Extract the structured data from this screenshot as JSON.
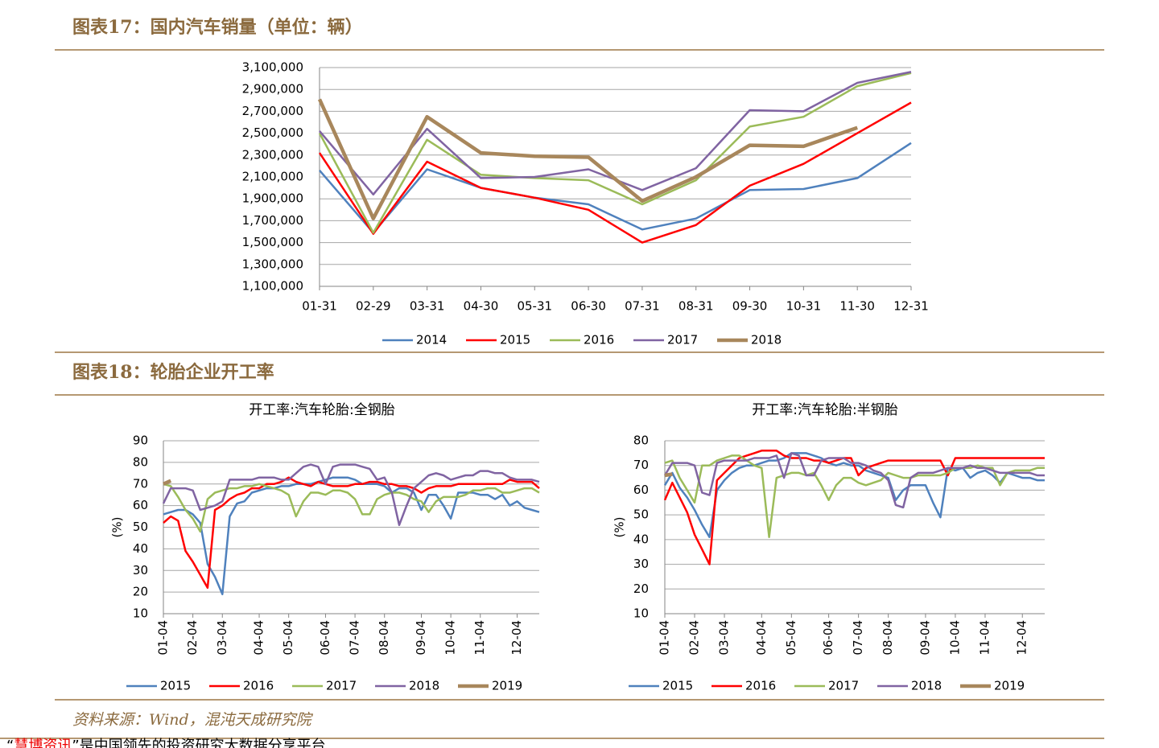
{
  "sections": [
    {
      "title": "图表17：国内汽车销量（单位：辆）"
    },
    {
      "title": "图表18：轮胎企业开工率"
    }
  ],
  "source": "资料来源：Wind，混沌天成研究院",
  "footer": {
    "quote_open": "“",
    "brand": "慧博资讯",
    "rest": "”是中国领先的投资研究大数据分享平台"
  },
  "chart_data": [
    {
      "type": "line",
      "categories": [
        "01-31",
        "02-29",
        "03-31",
        "04-30",
        "05-31",
        "06-30",
        "07-31",
        "08-31",
        "09-30",
        "10-31",
        "11-30",
        "12-31"
      ],
      "ylim": [
        1100000,
        3100000
      ],
      "yticks": [
        {
          "value": 1100000,
          "label": "1,100,000"
        },
        {
          "value": 1300000,
          "label": "1,300,000"
        },
        {
          "value": 1500000,
          "label": "1,500,000"
        },
        {
          "value": 1700000,
          "label": "1,700,000"
        },
        {
          "value": 1900000,
          "label": "1,900,000"
        },
        {
          "value": 2100000,
          "label": "2,100,000"
        },
        {
          "value": 2300000,
          "label": "2,300,000"
        },
        {
          "value": 2500000,
          "label": "2,500,000"
        },
        {
          "value": 2700000,
          "label": "2,700,000"
        },
        {
          "value": 2900000,
          "label": "2,900,000"
        },
        {
          "value": 3100000,
          "label": "3,100,000"
        }
      ],
      "grid": true,
      "series": [
        {
          "name": "2014",
          "color": "#4f81bd",
          "width": 2.5,
          "values": [
            2160000,
            1590000,
            2170000,
            2000000,
            1910000,
            1850000,
            1620000,
            1720000,
            1980000,
            1990000,
            2090000,
            2410000
          ]
        },
        {
          "name": "2015",
          "color": "#ff0000",
          "width": 2.5,
          "values": [
            2320000,
            1580000,
            2240000,
            2000000,
            1910000,
            1800000,
            1500000,
            1660000,
            2020000,
            2220000,
            2500000,
            2780000
          ]
        },
        {
          "name": "2016",
          "color": "#9bbb59",
          "width": 2.5,
          "values": [
            2500000,
            1590000,
            2440000,
            2120000,
            2090000,
            2070000,
            1850000,
            2070000,
            2560000,
            2650000,
            2930000,
            3050000
          ]
        },
        {
          "name": "2017",
          "color": "#8064a2",
          "width": 2.5,
          "values": [
            2520000,
            1940000,
            2540000,
            2090000,
            2100000,
            2170000,
            1980000,
            2180000,
            2710000,
            2700000,
            2960000,
            3060000
          ]
        },
        {
          "name": "2018",
          "color": "#a8875c",
          "width": 4.5,
          "values": [
            2810000,
            1720000,
            2650000,
            2320000,
            2290000,
            2280000,
            1880000,
            2100000,
            2390000,
            2380000,
            2550000,
            null
          ]
        }
      ]
    },
    {
      "type": "line",
      "title": "开工率:汽车轮胎:全钢胎",
      "ylabel": "(%)",
      "categories": [
        "01-04",
        null,
        null,
        null,
        "02-04",
        null,
        null,
        null,
        "03-04",
        null,
        null,
        null,
        null,
        "04-04",
        null,
        null,
        null,
        "05-04",
        null,
        null,
        null,
        null,
        "06-04",
        null,
        null,
        null,
        "07-04",
        null,
        null,
        null,
        "08-04",
        null,
        null,
        null,
        null,
        "09-04",
        null,
        null,
        null,
        "10-04",
        null,
        null,
        null,
        "11-04",
        null,
        null,
        null,
        null,
        "12-04",
        null,
        null,
        null
      ],
      "ylim": [
        10,
        90
      ],
      "yticks": [
        10,
        20,
        30,
        40,
        50,
        60,
        70,
        80,
        90
      ],
      "grid": true,
      "series": [
        {
          "name": "2015",
          "color": "#4f81bd",
          "width": 2.5,
          "values": [
            56,
            57,
            58,
            58,
            56,
            52,
            33,
            27,
            19,
            55,
            61,
            62,
            66,
            67,
            68,
            68,
            69,
            69,
            70,
            70,
            70,
            71,
            72,
            73,
            73,
            73,
            72,
            70,
            70,
            70,
            69,
            66,
            68,
            68,
            66,
            58,
            65,
            65,
            60,
            54,
            66,
            66,
            66,
            65,
            65,
            63,
            65,
            60,
            62,
            59,
            58,
            57
          ]
        },
        {
          "name": "2016",
          "color": "#ff0000",
          "width": 2.5,
          "values": [
            52,
            55,
            53,
            39,
            34,
            28,
            22,
            58,
            60,
            63,
            65,
            66,
            68,
            68,
            70,
            70,
            71,
            73,
            71,
            70,
            69,
            71,
            70,
            69,
            69,
            69,
            70,
            70,
            71,
            71,
            70,
            70,
            69,
            69,
            68,
            66,
            68,
            69,
            69,
            69,
            70,
            70,
            70,
            70,
            70,
            70,
            70,
            72,
            71,
            71,
            71,
            68
          ]
        },
        {
          "name": "2017",
          "color": "#9bbb59",
          "width": 2.5,
          "values": [
            70,
            69,
            64,
            58,
            54,
            48,
            63,
            66,
            67,
            68,
            68,
            69,
            69,
            70,
            69,
            68,
            67,
            65,
            55,
            62,
            66,
            66,
            65,
            67,
            67,
            66,
            63,
            56,
            56,
            63,
            65,
            66,
            66,
            65,
            63,
            62,
            57,
            62,
            64,
            64,
            64,
            65,
            67,
            67,
            68,
            68,
            66,
            66,
            67,
            68,
            68,
            66
          ]
        },
        {
          "name": "2018",
          "color": "#8064a2",
          "width": 2.5,
          "values": [
            61,
            68,
            68,
            68,
            67,
            58,
            59,
            60,
            62,
            72,
            72,
            72,
            72,
            73,
            73,
            73,
            72,
            72,
            75,
            78,
            79,
            78,
            70,
            78,
            79,
            79,
            79,
            78,
            77,
            72,
            73,
            66,
            51,
            60,
            68,
            71,
            74,
            75,
            74,
            72,
            73,
            74,
            74,
            76,
            76,
            75,
            75,
            73,
            72,
            72,
            72,
            71
          ]
        },
        {
          "name": "2019",
          "color": "#a8875c",
          "width": 4.5,
          "values": [
            70,
            71.5,
            null,
            null,
            null,
            null,
            null,
            null,
            null,
            null,
            null,
            null,
            null,
            null,
            null,
            null,
            null,
            null,
            null,
            null,
            null,
            null,
            null,
            null,
            null,
            null,
            null,
            null,
            null,
            null,
            null,
            null,
            null,
            null,
            null,
            null,
            null,
            null,
            null,
            null,
            null,
            null,
            null,
            null,
            null,
            null,
            null,
            null,
            null,
            null,
            null,
            null
          ]
        }
      ]
    },
    {
      "type": "line",
      "title": "开工率:汽车轮胎:半钢胎",
      "ylabel": "(%)",
      "categories": [
        "01-04",
        null,
        null,
        null,
        "02-04",
        null,
        null,
        null,
        "03-04",
        null,
        null,
        null,
        null,
        "04-04",
        null,
        null,
        null,
        "05-04",
        null,
        null,
        null,
        null,
        "06-04",
        null,
        null,
        null,
        "07-04",
        null,
        null,
        null,
        "08-04",
        null,
        null,
        null,
        null,
        "09-04",
        null,
        null,
        null,
        "10-04",
        null,
        null,
        null,
        "11-04",
        null,
        null,
        null,
        null,
        "12-04",
        null,
        null,
        null
      ],
      "ylim": [
        10,
        80
      ],
      "yticks": [
        10,
        20,
        30,
        40,
        50,
        60,
        70,
        80
      ],
      "grid": true,
      "series": [
        {
          "name": "2015",
          "color": "#4f81bd",
          "width": 2.5,
          "values": [
            62,
            67,
            61,
            57,
            52,
            46,
            41,
            60,
            64,
            67,
            69,
            70,
            70,
            71,
            72,
            72,
            73,
            75,
            75,
            75,
            74,
            73,
            71,
            70,
            71,
            70,
            70,
            68,
            67,
            66,
            65,
            56,
            60,
            62,
            62,
            62,
            55,
            49,
            69,
            68,
            69,
            65,
            67,
            68,
            66,
            63,
            67,
            66,
            65,
            65,
            64,
            64
          ]
        },
        {
          "name": "2016",
          "color": "#ff0000",
          "width": 2.5,
          "values": [
            56,
            63,
            57,
            51,
            42,
            36,
            30,
            64,
            67,
            70,
            73,
            74,
            75,
            76,
            76,
            76,
            74,
            73,
            73,
            73,
            72,
            72,
            71,
            72,
            73,
            73,
            66,
            69,
            70,
            71,
            72,
            72,
            72,
            72,
            72,
            72,
            72,
            72,
            66,
            73,
            73,
            73,
            73,
            73,
            73,
            73,
            73,
            73,
            73,
            73,
            73,
            73
          ]
        },
        {
          "name": "2017",
          "color": "#9bbb59",
          "width": 2.5,
          "values": [
            71,
            72,
            65,
            60,
            55,
            70,
            70,
            72,
            73,
            74,
            74,
            72,
            70,
            69,
            41,
            65,
            66,
            67,
            67,
            66,
            67,
            62,
            56,
            62,
            65,
            65,
            63,
            62,
            63,
            64,
            67,
            66,
            65,
            65,
            66,
            66,
            66,
            66,
            67,
            69,
            69,
            69,
            70,
            69,
            69,
            62,
            67,
            68,
            68,
            68,
            69,
            69
          ]
        },
        {
          "name": "2018",
          "color": "#8064a2",
          "width": 2.5,
          "values": [
            66,
            71,
            71,
            71,
            70,
            59,
            58,
            71,
            72,
            72,
            72,
            72,
            73,
            73,
            73,
            74,
            65,
            75,
            74,
            66,
            66,
            72,
            73,
            73,
            73,
            71,
            71,
            70,
            68,
            67,
            64,
            54,
            53,
            65,
            67,
            67,
            67,
            68,
            69,
            69,
            69,
            70,
            69,
            69,
            68,
            67,
            67,
            67,
            67,
            67,
            66,
            66
          ]
        },
        {
          "name": "2019",
          "color": "#a8875c",
          "width": 4.5,
          "values": [
            66,
            66.5,
            null,
            null,
            null,
            null,
            null,
            null,
            null,
            null,
            null,
            null,
            null,
            null,
            null,
            null,
            null,
            null,
            null,
            null,
            null,
            null,
            null,
            null,
            null,
            null,
            null,
            null,
            null,
            null,
            null,
            null,
            null,
            null,
            null,
            null,
            null,
            null,
            null,
            null,
            null,
            null,
            null,
            null,
            null,
            null,
            null,
            null,
            null,
            null,
            null,
            null
          ]
        }
      ]
    }
  ]
}
